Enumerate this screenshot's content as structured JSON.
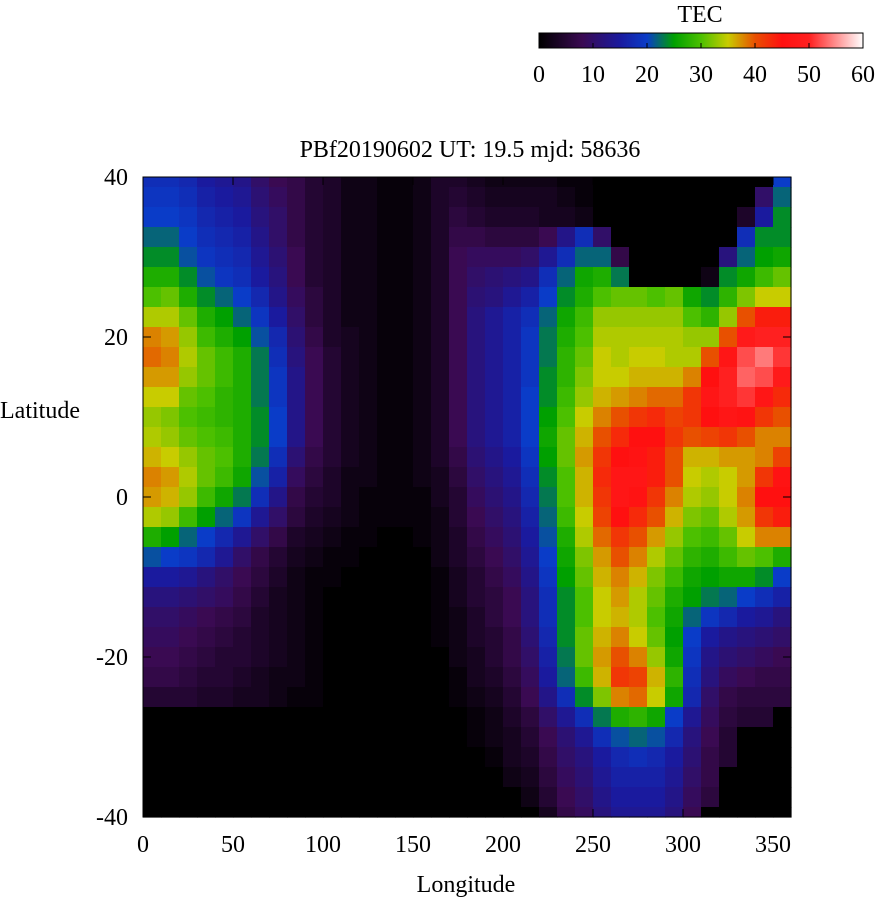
{
  "chart_data": {
    "type": "heatmap",
    "title": "PBf20190602  UT: 19.5  mjd: 58636",
    "xlabel": "Longitude",
    "ylabel": "Latitude",
    "xlim": [
      0,
      360
    ],
    "ylim": [
      -40,
      40
    ],
    "xticks": [
      0,
      50,
      100,
      150,
      200,
      250,
      300,
      350
    ],
    "yticks": [
      -40,
      -20,
      0,
      20,
      40
    ],
    "colorbar": {
      "label": "TEC",
      "range": [
        0,
        60
      ],
      "ticks": [
        0,
        10,
        20,
        30,
        40,
        50,
        60
      ],
      "position": "top-right",
      "stops": [
        {
          "value": 0,
          "color": "#000000"
        },
        {
          "value": 8,
          "color": "#3a0a52"
        },
        {
          "value": 15,
          "color": "#1a1a9e"
        },
        {
          "value": 20,
          "color": "#0a3cc8"
        },
        {
          "value": 25,
          "color": "#00a000"
        },
        {
          "value": 30,
          "color": "#4cc000"
        },
        {
          "value": 35,
          "color": "#c8cc00"
        },
        {
          "value": 40,
          "color": "#e85000"
        },
        {
          "value": 45,
          "color": "#ff1010"
        },
        {
          "value": 50,
          "color": "#ff2020"
        },
        {
          "value": 55,
          "color": "#ff9090"
        },
        {
          "value": 60,
          "color": "#ffffff"
        }
      ]
    },
    "grid": {
      "lon_start": 0,
      "lon_step": 10,
      "lat": [
        40,
        37.5,
        35,
        32.5,
        30,
        27.5,
        25,
        22.5,
        20,
        17.5,
        15,
        12.5,
        10,
        7.5,
        5,
        2.5,
        0,
        -2.5,
        -5,
        -7.5,
        -10,
        -12.5,
        -15,
        -17.5,
        -20,
        -22.5,
        -25,
        -27.5,
        -30,
        -32.5,
        -35,
        -37.5,
        -40
      ],
      "values": [
        [
          18,
          18,
          17,
          15,
          14,
          13,
          10,
          8,
          7,
          5,
          4,
          2,
          2,
          1,
          1,
          2,
          4,
          4,
          3,
          2,
          2,
          2,
          2,
          1,
          1,
          0,
          0,
          0,
          0,
          0,
          0,
          0,
          0,
          0,
          0,
          20
        ],
        [
          19,
          19,
          18,
          16,
          15,
          14,
          11,
          9,
          7,
          5,
          4,
          2,
          2,
          1,
          1,
          2,
          4,
          5,
          4,
          3,
          3,
          3,
          3,
          2,
          1,
          0,
          0,
          0,
          0,
          0,
          0,
          0,
          0,
          0,
          10,
          22
        ],
        [
          20,
          20,
          19,
          17,
          16,
          15,
          12,
          10,
          7,
          5,
          4,
          2,
          2,
          1,
          1,
          2,
          4,
          6,
          5,
          4,
          4,
          4,
          3,
          3,
          2,
          0,
          0,
          0,
          0,
          0,
          0,
          0,
          0,
          4,
          15,
          24
        ],
        [
          22,
          22,
          20,
          18,
          17,
          16,
          13,
          10,
          7,
          5,
          4,
          2,
          2,
          1,
          1,
          2,
          4,
          7,
          7,
          6,
          6,
          6,
          8,
          13,
          18,
          10,
          0,
          0,
          0,
          0,
          0,
          0,
          0,
          18,
          24,
          24
        ],
        [
          24,
          24,
          21,
          19,
          18,
          17,
          14,
          11,
          8,
          5,
          4,
          2,
          2,
          1,
          1,
          2,
          4,
          8,
          9,
          9,
          9,
          10,
          14,
          18,
          22,
          22,
          7,
          0,
          0,
          0,
          0,
          0,
          12,
          22,
          25,
          26
        ],
        [
          27,
          27,
          24,
          21,
          19,
          18,
          15,
          12,
          8,
          5,
          4,
          2,
          2,
          1,
          1,
          2,
          4,
          8,
          10,
          11,
          12,
          13,
          18,
          22,
          26,
          27,
          23,
          0,
          0,
          0,
          0,
          2,
          24,
          26,
          29,
          31
        ],
        [
          30,
          31,
          27,
          24,
          22,
          20,
          17,
          13,
          9,
          6,
          4,
          2,
          2,
          1,
          1,
          2,
          4,
          8,
          11,
          12,
          14,
          16,
          20,
          24,
          27,
          30,
          31,
          31,
          30,
          31,
          26,
          24,
          28,
          32,
          35,
          35
        ],
        [
          34,
          34,
          31,
          27,
          25,
          22,
          19,
          15,
          10,
          6,
          4,
          2,
          2,
          1,
          1,
          2,
          4,
          8,
          12,
          14,
          16,
          18,
          22,
          26,
          29,
          33,
          33,
          33,
          33,
          33,
          30,
          28,
          33,
          40,
          44,
          44
        ],
        [
          38,
          37,
          33,
          29,
          27,
          25,
          21,
          17,
          11,
          7,
          4,
          3,
          2,
          1,
          1,
          2,
          4,
          8,
          12,
          14,
          16,
          19,
          23,
          27,
          30,
          34,
          34,
          34,
          34,
          34,
          33,
          33,
          40,
          48,
          50,
          50
        ],
        [
          39,
          38,
          34,
          31,
          29,
          27,
          23,
          18,
          12,
          8,
          5,
          3,
          2,
          1,
          1,
          2,
          4,
          8,
          12,
          14,
          16,
          19,
          23,
          28,
          31,
          35,
          34,
          35,
          35,
          34,
          34,
          40,
          47,
          52,
          54,
          51
        ],
        [
          37,
          37,
          33,
          31,
          29,
          27,
          23,
          19,
          13,
          8,
          5,
          3,
          2,
          1,
          1,
          2,
          4,
          8,
          12,
          14,
          16,
          19,
          24,
          28,
          32,
          35,
          35,
          36,
          36,
          36,
          38,
          45,
          50,
          53,
          52,
          48
        ],
        [
          35,
          35,
          31,
          30,
          28,
          27,
          23,
          19,
          13,
          8,
          5,
          3,
          2,
          1,
          1,
          2,
          4,
          8,
          12,
          14,
          16,
          20,
          24,
          29,
          33,
          36,
          37,
          38,
          39,
          39,
          42,
          47,
          50,
          51,
          47,
          43
        ],
        [
          33,
          32,
          30,
          29,
          28,
          27,
          24,
          20,
          13,
          8,
          5,
          3,
          2,
          1,
          1,
          2,
          4,
          8,
          12,
          14,
          16,
          20,
          25,
          30,
          35,
          38,
          40,
          42,
          43,
          41,
          42,
          45,
          47,
          46,
          42,
          40
        ],
        [
          34,
          33,
          31,
          30,
          29,
          27,
          24,
          20,
          13,
          8,
          5,
          3,
          2,
          1,
          1,
          2,
          4,
          8,
          12,
          14,
          16,
          20,
          26,
          31,
          36,
          40,
          43,
          45,
          45,
          42,
          40,
          41,
          42,
          40,
          38,
          38
        ],
        [
          36,
          35,
          33,
          31,
          30,
          27,
          23,
          18,
          11,
          7,
          5,
          3,
          2,
          1,
          1,
          2,
          4,
          7,
          11,
          13,
          15,
          19,
          25,
          31,
          37,
          42,
          45,
          46,
          44,
          40,
          36,
          36,
          37,
          37,
          38,
          41
        ],
        [
          38,
          37,
          34,
          31,
          29,
          26,
          21,
          16,
          9,
          6,
          4,
          2,
          2,
          1,
          1,
          2,
          3,
          6,
          10,
          12,
          14,
          18,
          24,
          30,
          36,
          43,
          47,
          47,
          44,
          40,
          35,
          34,
          35,
          37,
          42,
          46
        ],
        [
          37,
          36,
          33,
          29,
          26,
          23,
          18,
          13,
          7,
          5,
          4,
          2,
          1,
          1,
          1,
          1,
          3,
          5,
          9,
          11,
          13,
          17,
          23,
          30,
          36,
          42,
          47,
          46,
          42,
          38,
          34,
          33,
          35,
          38,
          45,
          45
        ],
        [
          34,
          33,
          29,
          25,
          22,
          19,
          14,
          10,
          6,
          4,
          3,
          2,
          1,
          1,
          1,
          1,
          2,
          5,
          8,
          10,
          12,
          16,
          22,
          29,
          35,
          41,
          45,
          43,
          40,
          36,
          32,
          31,
          34,
          37,
          42,
          44
        ],
        [
          27,
          25,
          22,
          20,
          17,
          14,
          10,
          7,
          4,
          3,
          2,
          1,
          1,
          0,
          0,
          1,
          2,
          4,
          7,
          9,
          11,
          15,
          21,
          27,
          34,
          39,
          42,
          40,
          37,
          33,
          30,
          29,
          31,
          35,
          38,
          38
        ],
        [
          21,
          20,
          19,
          17,
          14,
          10,
          7,
          5,
          3,
          2,
          1,
          1,
          0,
          0,
          0,
          0,
          2,
          4,
          6,
          8,
          10,
          14,
          20,
          26,
          32,
          37,
          40,
          38,
          34,
          31,
          28,
          27,
          29,
          31,
          30,
          27
        ],
        [
          15,
          15,
          14,
          12,
          10,
          8,
          6,
          4,
          2,
          1,
          1,
          0,
          0,
          0,
          0,
          0,
          1,
          3,
          5,
          7,
          9,
          13,
          19,
          25,
          31,
          36,
          38,
          36,
          32,
          29,
          26,
          25,
          26,
          26,
          24,
          20
        ],
        [
          12,
          12,
          11,
          10,
          9,
          7,
          5,
          3,
          2,
          1,
          0,
          0,
          0,
          0,
          0,
          0,
          1,
          3,
          5,
          6,
          8,
          12,
          18,
          24,
          30,
          35,
          37,
          34,
          31,
          27,
          25,
          23,
          22,
          20,
          18,
          16
        ],
        [
          10,
          10,
          9,
          8,
          7,
          6,
          4,
          3,
          2,
          1,
          0,
          0,
          0,
          0,
          0,
          0,
          1,
          2,
          4,
          6,
          8,
          12,
          18,
          24,
          30,
          35,
          36,
          34,
          30,
          26,
          22,
          19,
          17,
          15,
          14,
          12
        ],
        [
          9,
          9,
          8,
          7,
          6,
          5,
          4,
          3,
          2,
          1,
          0,
          0,
          0,
          0,
          0,
          0,
          1,
          2,
          4,
          5,
          7,
          11,
          17,
          24,
          31,
          36,
          38,
          35,
          31,
          25,
          20,
          15,
          13,
          12,
          11,
          10
        ],
        [
          8,
          8,
          7,
          6,
          5,
          5,
          4,
          3,
          2,
          1,
          0,
          0,
          0,
          0,
          0,
          0,
          0,
          2,
          3,
          5,
          7,
          10,
          16,
          23,
          31,
          37,
          40,
          38,
          33,
          26,
          19,
          13,
          11,
          10,
          9,
          8
        ],
        [
          7,
          7,
          6,
          5,
          5,
          4,
          3,
          2,
          2,
          1,
          0,
          0,
          0,
          0,
          0,
          0,
          0,
          1,
          3,
          4,
          6,
          9,
          15,
          22,
          29,
          36,
          42,
          41,
          36,
          28,
          18,
          12,
          9,
          8,
          7,
          7
        ],
        [
          5,
          5,
          5,
          4,
          4,
          3,
          3,
          2,
          1,
          1,
          0,
          0,
          0,
          0,
          0,
          0,
          0,
          1,
          2,
          3,
          5,
          8,
          13,
          18,
          24,
          32,
          38,
          39,
          35,
          26,
          17,
          10,
          7,
          6,
          6,
          6
        ],
        [
          0,
          0,
          0,
          0,
          0,
          0,
          0,
          0,
          0,
          0,
          0,
          0,
          0,
          0,
          0,
          0,
          0,
          0,
          1,
          2,
          4,
          6,
          10,
          14,
          18,
          23,
          27,
          28,
          26,
          20,
          14,
          9,
          6,
          5,
          5,
          0
        ],
        [
          0,
          0,
          0,
          0,
          0,
          0,
          0,
          0,
          0,
          0,
          0,
          0,
          0,
          0,
          0,
          0,
          0,
          0,
          1,
          2,
          3,
          5,
          8,
          11,
          14,
          18,
          21,
          22,
          21,
          17,
          12,
          8,
          5,
          0,
          0,
          0
        ],
        [
          0,
          0,
          0,
          0,
          0,
          0,
          0,
          0,
          0,
          0,
          0,
          0,
          0,
          0,
          0,
          0,
          0,
          0,
          0,
          1,
          3,
          4,
          7,
          10,
          12,
          15,
          17,
          18,
          17,
          15,
          11,
          7,
          5,
          0,
          0,
          0
        ],
        [
          0,
          0,
          0,
          0,
          0,
          0,
          0,
          0,
          0,
          0,
          0,
          0,
          0,
          0,
          0,
          0,
          0,
          0,
          0,
          0,
          2,
          3,
          6,
          9,
          11,
          14,
          16,
          16,
          16,
          14,
          10,
          7,
          0,
          0,
          0,
          0
        ],
        [
          0,
          0,
          0,
          0,
          0,
          0,
          0,
          0,
          0,
          0,
          0,
          0,
          0,
          0,
          0,
          0,
          0,
          0,
          0,
          0,
          0,
          2,
          5,
          8,
          10,
          13,
          15,
          15,
          15,
          13,
          9,
          6,
          0,
          0,
          0,
          0
        ],
        [
          0,
          0,
          0,
          0,
          0,
          0,
          0,
          0,
          0,
          0,
          0,
          0,
          0,
          0,
          0,
          0,
          0,
          0,
          0,
          0,
          0,
          0,
          3,
          7,
          9,
          12,
          14,
          14,
          14,
          12,
          8,
          0,
          0,
          0,
          0,
          0
        ]
      ]
    }
  }
}
